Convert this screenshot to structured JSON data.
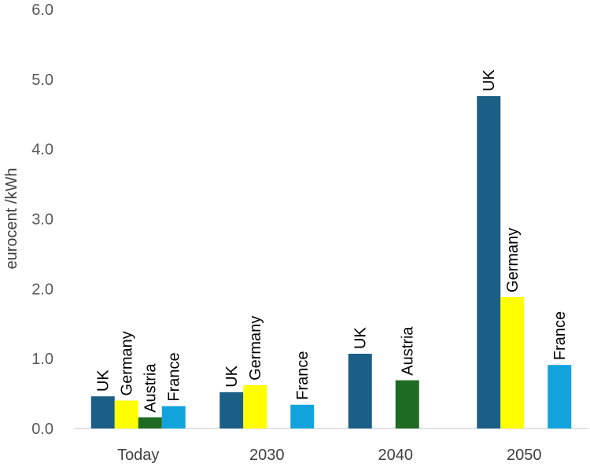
{
  "chart_data": {
    "type": "bar",
    "ylabel": "eurocent /kWh",
    "xlabel": "",
    "ylim": [
      0,
      6
    ],
    "y_ticks": [
      "0.0",
      "1.0",
      "2.0",
      "3.0",
      "4.0",
      "5.0",
      "6.0"
    ],
    "grid": false,
    "legend": "none",
    "categories": [
      "Today",
      "2030",
      "2040",
      "2050"
    ],
    "series": [
      {
        "name": "UK",
        "color": "#1B5E86",
        "values": [
          0.46,
          0.52,
          1.07,
          4.76
        ]
      },
      {
        "name": "Germany",
        "color": "#FFFF00",
        "values": [
          0.4,
          0.62,
          null,
          1.88
        ]
      },
      {
        "name": "Austria",
        "color": "#1E6B23",
        "values": [
          0.16,
          null,
          0.69,
          null
        ]
      },
      {
        "name": "France",
        "color": "#13A3DC",
        "values": [
          0.32,
          0.34,
          null,
          0.91
        ]
      }
    ]
  }
}
